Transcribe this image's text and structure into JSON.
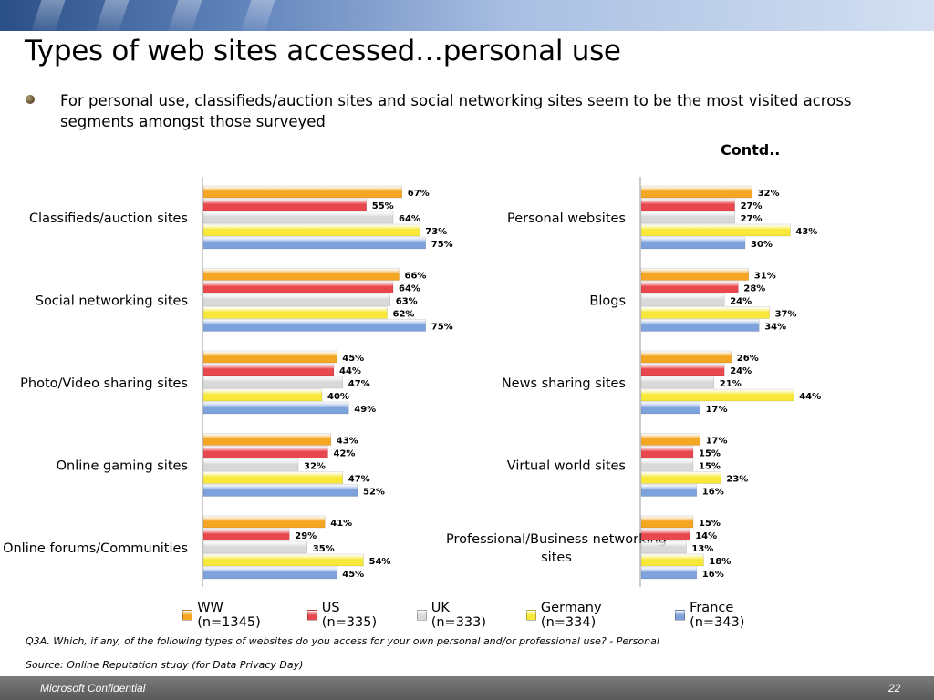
{
  "title": "Types of web sites accessed…personal use",
  "bullet": "For personal use, classifieds/auction sites and social networking sites seem to be the most visited across segments amongst those surveyed",
  "contd": "Contd..",
  "footnote": "Q3A. Which, if any, of the following types of websites do you access for your own personal and/or professional use?  - Personal",
  "source": "Source: Online Reputation study (for Data Privacy Day)",
  "footer": {
    "left": "Microsoft Confidential",
    "page": "22"
  },
  "chart_data": [
    {
      "type": "bar",
      "orientation": "horizontal",
      "categories": [
        "Classifieds/auction sites",
        "Social networking sites",
        "Photo/Video sharing sites",
        "Online gaming sites",
        "Online forums/Communities"
      ],
      "series": [
        {
          "name": "WW (n=1345)",
          "color": "#f5a623",
          "values": [
            67,
            66,
            45,
            43,
            41
          ]
        },
        {
          "name": "US (n=335)",
          "color": "#e8474d",
          "values": [
            55,
            64,
            44,
            42,
            29
          ]
        },
        {
          "name": "UK (n=333)",
          "color": "#d9d9d9",
          "values": [
            64,
            63,
            47,
            32,
            35
          ]
        },
        {
          "name": "Germany (n=334)",
          "color": "#f7e83a",
          "values": [
            73,
            62,
            40,
            47,
            54
          ]
        },
        {
          "name": "France (n=343)",
          "color": "#7ea3dc",
          "values": [
            75,
            75,
            49,
            52,
            45
          ]
        }
      ],
      "value_suffix": "%",
      "xlim": [
        0,
        100
      ]
    },
    {
      "type": "bar",
      "orientation": "horizontal",
      "categories": [
        "Personal websites",
        "Blogs",
        "News sharing sites",
        "Virtual world sites",
        "Professional/Business networking sites"
      ],
      "series": [
        {
          "name": "WW (n=1345)",
          "color": "#f5a623",
          "values": [
            32,
            31,
            26,
            17,
            15
          ]
        },
        {
          "name": "US (n=335)",
          "color": "#e8474d",
          "values": [
            27,
            28,
            24,
            15,
            14
          ]
        },
        {
          "name": "UK (n=333)",
          "color": "#d9d9d9",
          "values": [
            27,
            24,
            21,
            15,
            13
          ]
        },
        {
          "name": "Germany (n=334)",
          "color": "#f7e83a",
          "values": [
            43,
            37,
            44,
            23,
            18
          ]
        },
        {
          "name": "France (n=343)",
          "color": "#7ea3dc",
          "values": [
            30,
            34,
            17,
            16,
            16
          ]
        }
      ],
      "value_suffix": "%",
      "xlim": [
        0,
        100
      ]
    }
  ]
}
